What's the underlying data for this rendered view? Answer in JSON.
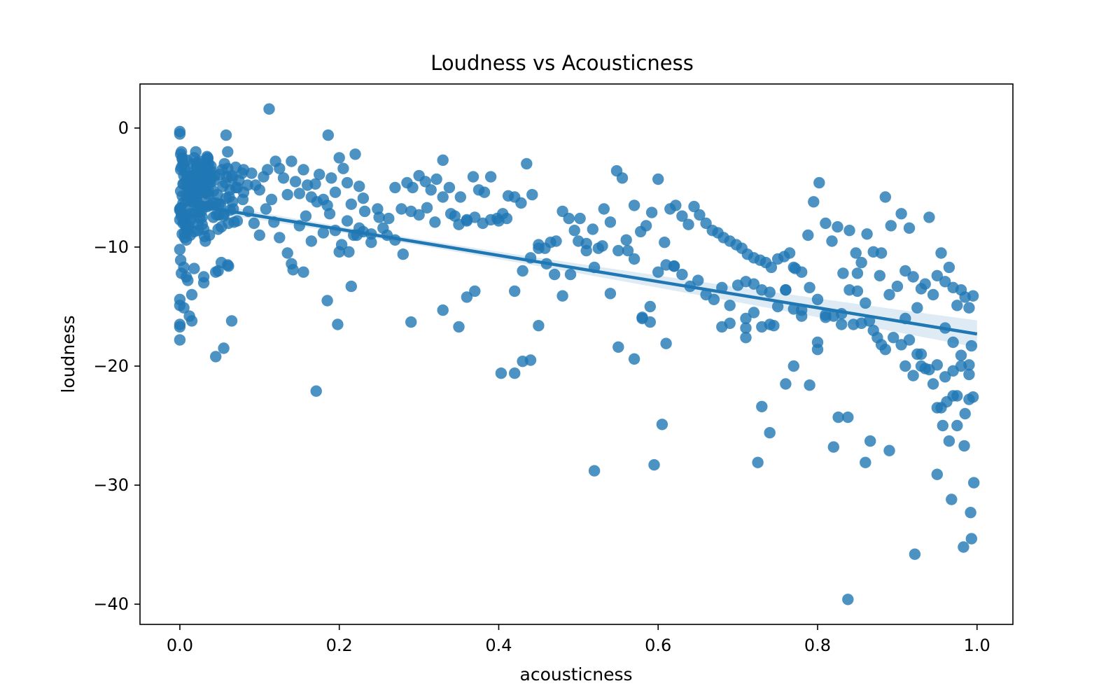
{
  "chart_data": {
    "type": "scatter",
    "title": "Loudness vs Acousticness",
    "xlabel": "acousticness",
    "ylabel": "loudness",
    "xlim": [
      -0.05,
      1.045
    ],
    "ylim": [
      -41.7,
      3.7
    ],
    "x_ticks": [
      0.0,
      0.2,
      0.4,
      0.6,
      0.8,
      1.0
    ],
    "x_tick_labels": [
      "0.0",
      "0.2",
      "0.4",
      "0.6",
      "0.8",
      "1.0"
    ],
    "y_ticks": [
      0,
      -10,
      -20,
      -30,
      -40
    ],
    "y_tick_labels": [
      "0",
      "−10",
      "−20",
      "−30",
      "−40"
    ],
    "grid": false,
    "legend": "none",
    "point_color": "#1f77b4",
    "regression": {
      "x": [
        0.0,
        1.0
      ],
      "y": [
        -6.3,
        -17.3
      ]
    },
    "x": [
      0.0,
      0.0,
      0.002,
      0.003,
      0.004,
      0.001,
      0.005,
      0.008,
      0.01,
      0.012,
      0.015,
      0.018,
      0.02,
      0.022,
      0.025,
      0.028,
      0.03,
      0.033,
      0.036,
      0.04,
      0.0,
      0.002,
      0.005,
      0.007,
      0.01,
      0.013,
      0.016,
      0.02,
      0.024,
      0.027,
      0.031,
      0.035,
      0.039,
      0.043,
      0.047,
      0.051,
      0.055,
      0.06,
      0.065,
      0.07,
      0.001,
      0.003,
      0.006,
      0.009,
      0.012,
      0.015,
      0.019,
      0.023,
      0.027,
      0.032,
      0.036,
      0.041,
      0.046,
      0.05,
      0.054,
      0.058,
      0.063,
      0.068,
      0.074,
      0.08,
      0.002,
      0.004,
      0.008,
      0.011,
      0.014,
      0.018,
      0.022,
      0.026,
      0.03,
      0.034,
      0.038,
      0.042,
      0.048,
      0.053,
      0.057,
      0.062,
      0.067,
      0.072,
      0.078,
      0.085,
      0.003,
      0.006,
      0.009,
      0.013,
      0.017,
      0.021,
      0.025,
      0.029,
      0.034,
      0.039,
      0.044,
      0.049,
      0.055,
      0.061,
      0.066,
      0.072,
      0.079,
      0.086,
      0.093,
      0.1,
      0.001,
      0.004,
      0.007,
      0.01,
      0.014,
      0.017,
      0.021,
      0.024,
      0.028,
      0.031,
      0.035,
      0.038,
      0.042,
      0.045,
      0.049,
      0.052,
      0.056,
      0.059,
      0.063,
      0.066,
      0.0,
      0.002,
      0.004,
      0.006,
      0.008,
      0.01,
      0.012,
      0.014,
      0.016,
      0.018,
      0.02,
      0.022,
      0.024,
      0.026,
      0.028,
      0.03,
      0.032,
      0.034,
      0.036,
      0.038,
      0.0,
      0.001,
      0.003,
      0.005,
      0.007,
      0.009,
      0.011,
      0.013,
      0.015,
      0.017,
      0.019,
      0.021,
      0.023,
      0.025,
      0.027,
      0.029,
      0.031,
      0.033,
      0.035,
      0.037,
      0.0,
      0.0,
      0.0,
      0.0,
      0.0,
      0.0,
      0.005,
      0.01,
      0.012,
      0.018,
      0.008,
      0.015,
      0.045,
      0.03,
      0.06,
      0.055,
      0.048,
      0.065,
      0.112,
      0.186,
      0.058,
      0.02,
      0.035,
      0.06,
      0.07,
      0.08,
      0.09,
      0.095,
      0.1,
      0.105,
      0.11,
      0.115,
      0.12,
      0.125,
      0.13,
      0.135,
      0.14,
      0.145,
      0.15,
      0.155,
      0.16,
      0.165,
      0.17,
      0.175,
      0.18,
      0.185,
      0.19,
      0.195,
      0.2,
      0.205,
      0.21,
      0.215,
      0.22,
      0.225,
      0.23,
      0.108,
      0.118,
      0.125,
      0.135,
      0.142,
      0.15,
      0.158,
      0.165,
      0.172,
      0.18,
      0.188,
      0.195,
      0.203,
      0.21,
      0.218,
      0.225,
      0.232,
      0.24,
      0.248,
      0.255,
      0.262,
      0.27,
      0.278,
      0.285,
      0.292,
      0.3,
      0.308,
      0.315,
      0.322,
      0.33,
      0.338,
      0.345,
      0.352,
      0.36,
      0.368,
      0.375,
      0.382,
      0.39,
      0.398,
      0.405,
      0.412,
      0.42,
      0.428,
      0.435,
      0.442,
      0.45,
      0.458,
      0.465,
      0.472,
      0.48,
      0.488,
      0.495,
      0.502,
      0.51,
      0.518,
      0.525,
      0.532,
      0.54,
      0.548,
      0.555,
      0.562,
      0.57,
      0.578,
      0.585,
      0.592,
      0.6,
      0.608,
      0.615,
      0.622,
      0.63,
      0.638,
      0.645,
      0.652,
      0.66,
      0.668,
      0.675,
      0.682,
      0.69,
      0.698,
      0.705,
      0.712,
      0.72,
      0.728,
      0.735,
      0.742,
      0.75,
      0.758,
      0.765,
      0.772,
      0.78,
      0.788,
      0.795,
      0.802,
      0.81,
      0.818,
      0.825,
      0.832,
      0.84,
      0.848,
      0.855,
      0.862,
      0.87,
      0.878,
      0.885,
      0.892,
      0.9,
      0.905,
      0.91,
      0.915,
      0.92,
      0.925,
      0.93,
      0.935,
      0.94,
      0.945,
      0.95,
      0.955,
      0.96,
      0.965,
      0.97,
      0.975,
      0.98,
      0.985,
      0.99,
      0.995,
      0.96,
      0.97,
      0.98,
      0.99,
      0.995,
      0.985,
      0.975,
      0.965,
      0.955,
      0.945,
      0.935,
      0.925,
      0.915,
      0.905,
      0.895,
      0.885,
      0.875,
      0.865,
      0.855,
      0.845,
      0.2,
      0.212,
      0.222,
      0.23,
      0.24,
      0.25,
      0.26,
      0.27,
      0.28,
      0.29,
      0.3,
      0.31,
      0.32,
      0.33,
      0.34,
      0.35,
      0.36,
      0.37,
      0.38,
      0.39,
      0.4,
      0.41,
      0.42,
      0.43,
      0.44,
      0.45,
      0.46,
      0.47,
      0.48,
      0.49,
      0.5,
      0.51,
      0.52,
      0.53,
      0.54,
      0.55,
      0.56,
      0.57,
      0.58,
      0.59,
      0.6,
      0.61,
      0.62,
      0.63,
      0.64,
      0.65,
      0.66,
      0.67,
      0.68,
      0.69,
      0.7,
      0.71,
      0.72,
      0.73,
      0.74,
      0.75,
      0.76,
      0.77,
      0.78,
      0.79,
      0.8,
      0.81,
      0.82,
      0.83,
      0.84,
      0.85,
      0.86,
      0.87,
      0.88,
      0.89,
      0.91,
      0.92,
      0.93,
      0.94,
      0.95,
      0.96,
      0.97,
      0.98,
      0.99,
      0.993,
      0.171,
      0.198,
      0.403,
      0.43,
      0.52,
      0.595,
      0.605,
      0.725,
      0.73,
      0.74,
      0.82,
      0.826,
      0.838,
      0.86,
      0.866,
      0.89,
      0.922,
      0.95,
      0.968,
      0.983,
      0.838,
      0.984,
      0.992,
      0.993,
      0.996,
      0.95,
      0.957,
      0.962,
      0.975,
      0.99,
      0.71,
      0.73,
      0.71,
      0.745,
      0.72,
      0.76,
      0.77,
      0.79,
      0.8,
      0.81,
      0.045,
      0.052,
      0.061,
      0.03,
      0.015,
      0.005,
      0.002,
      0.001,
      0.14,
      0.155,
      0.185,
      0.215,
      0.29,
      0.33,
      0.35,
      0.36,
      0.37,
      0.42,
      0.44,
      0.45,
      0.55,
      0.57,
      0.58,
      0.59,
      0.61,
      0.62,
      0.68,
      0.69,
      0.71,
      0.74,
      0.76,
      0.77,
      0.78,
      0.8,
      0.83,
      0.85,
      0.88,
      0.91,
      0.93,
      0.97
    ],
    "y": [
      -0.3,
      -0.5,
      -2.0,
      -2.5,
      -3.0,
      -3.5,
      -4.0,
      -4.5,
      -5.0,
      -5.5,
      -6.0,
      -4.2,
      -3.8,
      -3.2,
      -2.8,
      -4.8,
      -5.2,
      -6.5,
      -3.0,
      -4.1,
      -6.8,
      -7.2,
      -7.8,
      -8.2,
      -8.6,
      -9.0,
      -5.8,
      -6.2,
      -6.6,
      -7.0,
      -5.4,
      -4.6,
      -3.6,
      -4.4,
      -5.6,
      -6.4,
      -7.4,
      -3.4,
      -4.0,
      -5.0,
      -2.2,
      -2.6,
      -3.4,
      -4.2,
      -5.1,
      -6.1,
      -7.1,
      -8.1,
      -3.1,
      -4.3,
      -5.3,
      -6.3,
      -7.3,
      -3.9,
      -4.9,
      -5.9,
      -6.9,
      -7.9,
      -4.4,
      -5.4,
      -3.3,
      -4.7,
      -5.7,
      -6.7,
      -7.7,
      -8.7,
      -2.9,
      -3.7,
      -4.5,
      -5.5,
      -6.5,
      -7.5,
      -8.5,
      -3.5,
      -4.6,
      -5.8,
      -6.8,
      -7.8,
      -3.8,
      -4.8,
      -8.9,
      -9.2,
      -8.4,
      -7.6,
      -6.0,
      -5.2,
      -4.4,
      -3.6,
      -2.4,
      -3.2,
      -4.0,
      -6.4,
      -7.2,
      -8.0,
      -4.2,
      -5.0,
      -6.0,
      -7.0,
      -8.0,
      -9.0,
      -5.3,
      -6.3,
      -7.3,
      -8.3,
      -4.1,
      -5.1,
      -6.1,
      -7.1,
      -8.1,
      -9.1,
      -3.3,
      -4.3,
      -5.3,
      -6.3,
      -7.3,
      -8.3,
      -3.0,
      -4.1,
      -5.2,
      -6.2,
      -6.9,
      -7.4,
      -8.0,
      -8.8,
      -9.4,
      -6.0,
      -5.0,
      -4.0,
      -3.0,
      -2.5,
      -3.5,
      -4.5,
      -5.5,
      -6.5,
      -7.5,
      -8.5,
      -9.5,
      -6.6,
      -5.6,
      -4.6,
      -7.7,
      -6.7,
      -5.7,
      -4.7,
      -3.7,
      -2.7,
      -8.2,
      -7.2,
      -6.2,
      -5.2,
      -4.2,
      -3.2,
      -8.6,
      -7.6,
      -6.6,
      -5.6,
      -4.6,
      -3.6,
      -2.6,
      -9.0,
      -10.2,
      -14.9,
      -16.7,
      -17.8,
      -16.5,
      -14.4,
      -11.7,
      -12.8,
      -15.8,
      -11.8,
      -12.5,
      -16.2,
      -19.2,
      -12.5,
      -11.5,
      -18.5,
      -12.0,
      -16.2,
      1.6,
      -0.6,
      -0.6,
      -2.0,
      -2.5,
      -2.0,
      -3.3,
      -3.5,
      -3.8,
      -4.8,
      -5.2,
      -4.1,
      -3.5,
      -6.0,
      -2.8,
      -3.4,
      -4.2,
      -5.6,
      -2.8,
      -4.5,
      -5.5,
      -3.5,
      -4.8,
      -5.8,
      -4.7,
      -3.9,
      -6.0,
      -6.5,
      -4.2,
      -5.4,
      -2.5,
      -3.4,
      -4.6,
      -6.4,
      -2.2,
      -4.9,
      -5.9,
      -6.8,
      -7.9,
      -9.2,
      -10.5,
      -11.9,
      -8.2,
      -7.4,
      -9.5,
      -6.2,
      -8.8,
      -7.2,
      -8.6,
      -9.8,
      -7.8,
      -9.0,
      -8.4,
      -7.0,
      -9.6,
      -6.8,
      -8.4,
      -7.6,
      -5.0,
      -6.8,
      -4.6,
      -5.0,
      -4.0,
      -4.5,
      -5.2,
      -4.3,
      -2.7,
      -5.0,
      -7.4,
      -5.8,
      -7.8,
      -4.1,
      -5.2,
      -5.4,
      -4.1,
      -7.6,
      -7.2,
      -5.7,
      -5.8,
      -6.3,
      -3.0,
      -5.6,
      -9.8,
      -10.1,
      -9.6,
      -9.5,
      -7.0,
      -7.6,
      -8.6,
      -7.6,
      -9.7,
      -8.5,
      -10.1,
      -6.8,
      -7.9,
      -3.6,
      -4.2,
      -10.3,
      -6.5,
      -8.7,
      -8.2,
      -7.1,
      -4.3,
      -9.6,
      -6.8,
      -6.5,
      -7.4,
      -8.1,
      -6.6,
      -7.3,
      -8.0,
      -8.6,
      -8.8,
      -9.2,
      -9.5,
      -9.8,
      -10.1,
      -10.6,
      -10.9,
      -11.1,
      -11.3,
      -11.7,
      -11.0,
      -10.8,
      -10.5,
      -11.8,
      -12.1,
      -9.0,
      -6.2,
      -4.6,
      -8.0,
      -9.5,
      -8.3,
      -12.2,
      -8.6,
      -10.5,
      -11.3,
      -8.9,
      -10.4,
      -12.4,
      -5.8,
      -8.2,
      -13.3,
      -7.2,
      -12.0,
      -8.4,
      -12.5,
      -15.1,
      -13.5,
      -13.1,
      -7.5,
      -14.0,
      -12.4,
      -10.5,
      -12.9,
      -11.7,
      -13.4,
      -14.9,
      -13.6,
      -14.2,
      -15.1,
      -14.1,
      -16.8,
      -18.0,
      -19.1,
      -20.7,
      -22.6,
      -24.0,
      -25.0,
      -26.3,
      -23.5,
      -21.5,
      -20.2,
      -19.0,
      -17.8,
      -18.2,
      -17.6,
      -18.6,
      -17.6,
      -16.2,
      -16.4,
      -16.5,
      -10.4,
      -10.4,
      -9.0,
      -8.7,
      -8.9,
      -7.5,
      -9.0,
      -9.4,
      -10.6,
      -7.0,
      -7.3,
      -6.7,
      -7.9,
      -5.8,
      -7.2,
      -8.1,
      -7.7,
      -7.5,
      -8.0,
      -7.7,
      -7.8,
      -7.6,
      -13.7,
      -12.0,
      -10.9,
      -10.1,
      -11.4,
      -12.3,
      -14.1,
      -12.3,
      -9.5,
      -10.3,
      -11.7,
      -9.9,
      -13.9,
      -10.3,
      -9.4,
      -11.0,
      -16.0,
      -15.0,
      -12.1,
      -11.5,
      -11.6,
      -12.3,
      -13.3,
      -12.8,
      -14.0,
      -14.4,
      -16.7,
      -14.9,
      -13.2,
      -12.9,
      -13.1,
      -13.6,
      -13.8,
      -15.0,
      -13.6,
      -15.2,
      -15.8,
      -13.4,
      -14.4,
      -15.7,
      -15.8,
      -15.6,
      -13.6,
      -13.7,
      -14.7,
      -17.0,
      -18.2,
      -14.0,
      -20.0,
      -20.8,
      -20.0,
      -20.3,
      -19.9,
      -20.9,
      -20.4,
      -20.0,
      -19.9,
      -18.3,
      -22.1,
      -16.5,
      -20.6,
      -19.6,
      -28.8,
      -28.3,
      -24.9,
      -28.1,
      -23.4,
      -25.6,
      -26.8,
      -24.3,
      -24.3,
      -28.1,
      -26.3,
      -27.1,
      -35.8,
      -29.1,
      -31.2,
      -35.2,
      -39.6,
      -26.7,
      -32.3,
      -34.5,
      -29.8,
      -23.5,
      -25.0,
      -23.0,
      -22.5,
      -22.8,
      -16.0,
      -16.7,
      -17.6,
      -16.6,
      -15.5,
      -21.5,
      -20.0,
      -21.6,
      -18.6,
      -15.9,
      -12.1,
      -11.3,
      -11.6,
      -13.0,
      -14.0,
      -15.1,
      -12.2,
      -11.1,
      -11.4,
      -12.1,
      -14.5,
      -13.3,
      -16.3,
      -15.3,
      -16.7,
      -14.2,
      -13.7,
      -20.6,
      -19.5,
      -16.6,
      -18.4,
      -19.4,
      -15.9,
      -16.3,
      -18.1,
      -11.6,
      -13.4,
      -16.4,
      -16.8,
      -16.5,
      -13.6,
      -11.7,
      -15.3,
      -18.0,
      -16.5,
      -12.2,
      -10.5,
      -16.0,
      -19.0,
      -22.5
    ]
  }
}
